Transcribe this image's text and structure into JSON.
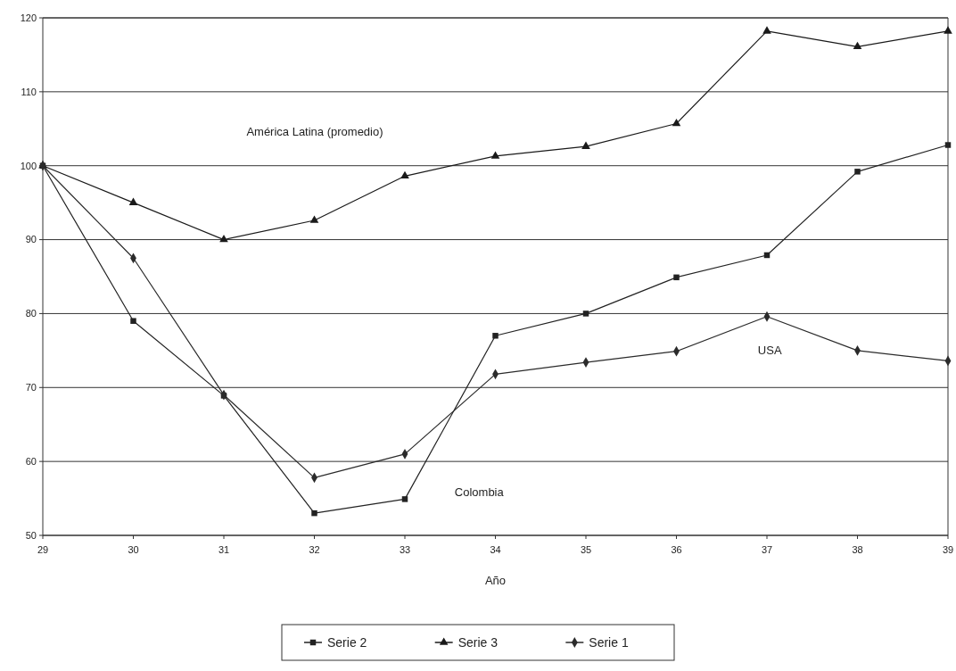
{
  "chart_data": {
    "type": "line",
    "xlabel": "Año",
    "x": [
      29,
      30,
      31,
      32,
      33,
      34,
      35,
      36,
      37,
      38,
      39
    ],
    "xlim": [
      29,
      39
    ],
    "xticks": [
      29,
      30,
      31,
      32,
      33,
      34,
      35,
      36,
      37,
      38,
      39
    ],
    "ylim": [
      50,
      120
    ],
    "yticks": [
      50,
      60,
      70,
      80,
      90,
      100,
      110,
      120
    ],
    "grid": "y",
    "legend": "bottom",
    "line_style": "solid",
    "series": [
      {
        "name": "Serie 2",
        "color": "#222222",
        "marker": "square",
        "values": [
          100,
          79.0,
          68.9,
          53.0,
          54.9,
          77.0,
          80.0,
          84.9,
          87.9,
          99.2,
          102.8
        ]
      },
      {
        "name": "Serie 3",
        "color": "#1a1a1a",
        "marker": "triangle",
        "values": [
          100,
          95.0,
          90.0,
          92.6,
          98.6,
          101.3,
          102.6,
          105.7,
          118.2,
          116.1,
          118.2
        ]
      },
      {
        "name": "Serie 1",
        "color": "#2b2b2b",
        "marker": "diamond",
        "values": [
          100,
          87.5,
          69.0,
          57.8,
          61.0,
          71.8,
          73.4,
          74.9,
          79.6,
          75.0,
          73.6
        ]
      }
    ],
    "annotations": [
      "América Latina (promedio)",
      "Colombia",
      "USA"
    ]
  }
}
